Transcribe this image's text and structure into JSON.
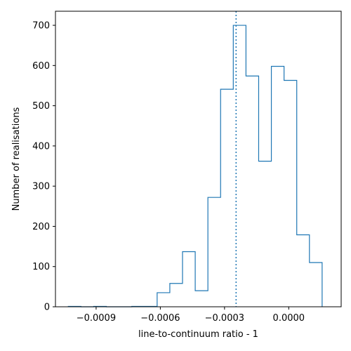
{
  "chart_data": {
    "type": "histogram",
    "title": "",
    "xlabel": "line-to-continuum ratio - 1",
    "ylabel": "Number of realisations",
    "xlim": [
      -0.00109,
      0.000245
    ],
    "ylim": [
      0,
      735
    ],
    "x_ticks": [
      {
        "value": -0.0009,
        "label": "−0.0009"
      },
      {
        "value": -0.0006,
        "label": "−0.0006"
      },
      {
        "value": -0.0003,
        "label": "−0.0003"
      },
      {
        "value": 0.0,
        "label": "0.0000"
      }
    ],
    "y_ticks": [
      {
        "value": 0,
        "label": "0"
      },
      {
        "value": 100,
        "label": "100"
      },
      {
        "value": 200,
        "label": "200"
      },
      {
        "value": 300,
        "label": "300"
      },
      {
        "value": 400,
        "label": "400"
      },
      {
        "value": 500,
        "label": "500"
      },
      {
        "value": 600,
        "label": "600"
      },
      {
        "value": 700,
        "label": "700"
      }
    ],
    "bin_start": -0.00103,
    "bin_width": 5.93e-05,
    "counts": [
      1,
      0,
      1,
      0,
      0,
      1,
      1,
      35,
      58,
      137,
      40,
      272,
      541,
      700,
      574,
      362,
      598,
      563,
      179,
      110
    ],
    "vline": -0.000246,
    "grid": false,
    "color": "#1f77b4"
  }
}
